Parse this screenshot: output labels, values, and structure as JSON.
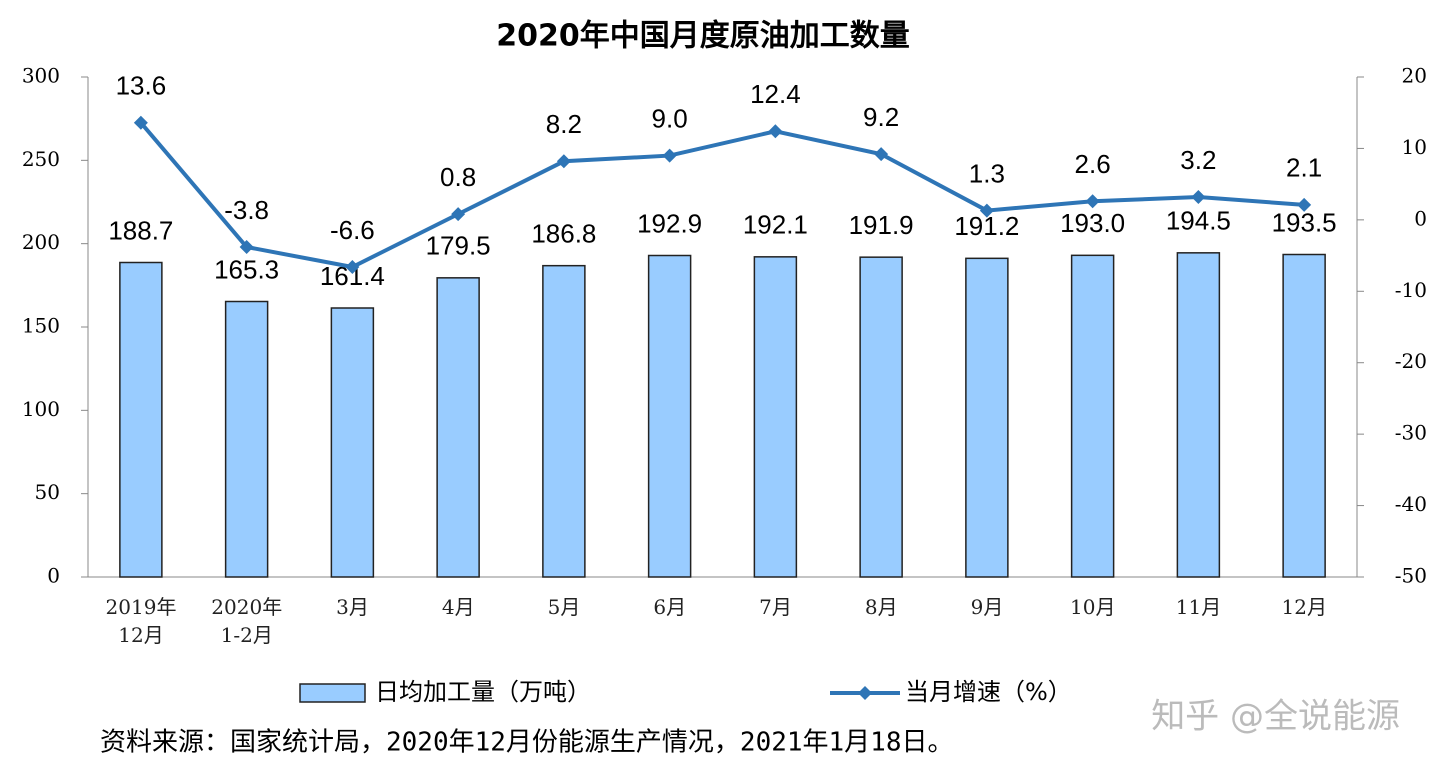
{
  "chart_data": {
    "type": "combo",
    "title": "2020年中国月度原油加工数量",
    "categories": [
      "2019年\n12月",
      "2020年\n1-2月",
      "3月",
      "4月",
      "5月",
      "6月",
      "7月",
      "8月",
      "9月",
      "10月",
      "11月",
      "12月"
    ],
    "series": [
      {
        "name": "日均加工量（万吨）",
        "type": "bar",
        "color": "#99ccff",
        "values": [
          188.7,
          165.3,
          161.4,
          179.5,
          186.8,
          192.9,
          192.1,
          191.9,
          191.2,
          193.0,
          194.5,
          193.5
        ],
        "value_labels": [
          "188.7",
          "165.3",
          "161.4",
          "179.5",
          "186.8",
          "192.9",
          "192.1",
          "191.9",
          "191.2",
          "193.0",
          "194.5",
          "193.5"
        ]
      },
      {
        "name": "当月增速（%）",
        "type": "line",
        "axis": "y2",
        "color": "#2e75b6",
        "values": [
          13.6,
          -3.8,
          -6.6,
          0.8,
          8.2,
          9.0,
          12.4,
          9.2,
          1.3,
          2.6,
          3.2,
          2.1
        ],
        "value_labels": [
          "13.6",
          "-3.8",
          "-6.6",
          "0.8",
          "8.2",
          "9.0",
          "12.4",
          "9.2",
          "1.3",
          "2.6",
          "3.2",
          "2.1"
        ]
      }
    ],
    "ylim": [
      0,
      300
    ],
    "yticks": [
      0,
      50,
      100,
      150,
      200,
      250,
      300
    ],
    "y2lim": [
      -50,
      20
    ],
    "y2ticks": [
      -50,
      -40,
      -30,
      -20,
      -10,
      0,
      10,
      20
    ],
    "grid": false,
    "legend": "bottom",
    "source": "资料来源：国家统计局，2020年12月份能源生产情况，2021年1月18日。",
    "watermark": "知乎 @全说能源"
  }
}
